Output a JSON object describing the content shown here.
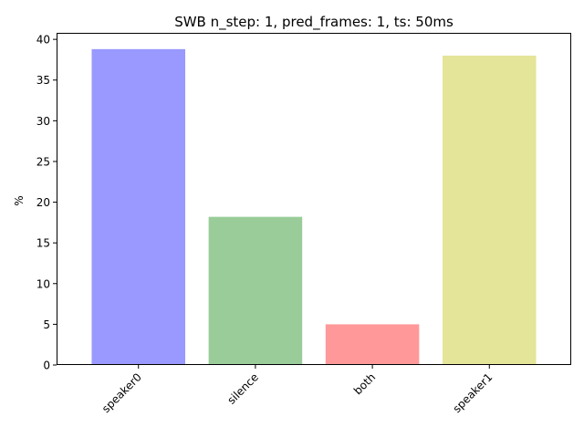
{
  "chart_data": {
    "type": "bar",
    "title": "SWB n_step: 1, pred_frames: 1, ts: 50ms",
    "xlabel": "",
    "ylabel": "%",
    "categories": [
      "speaker0",
      "silence",
      "both",
      "speaker1"
    ],
    "values": [
      38.8,
      18.2,
      5.0,
      38.0
    ],
    "colors": [
      "#9999ff",
      "#99cc99",
      "#ff9999",
      "#e5e599"
    ],
    "ylim": [
      0,
      40.8
    ],
    "yticks": [
      0,
      5,
      10,
      15,
      20,
      25,
      30,
      35,
      40
    ],
    "grid": false,
    "legend": "none"
  }
}
